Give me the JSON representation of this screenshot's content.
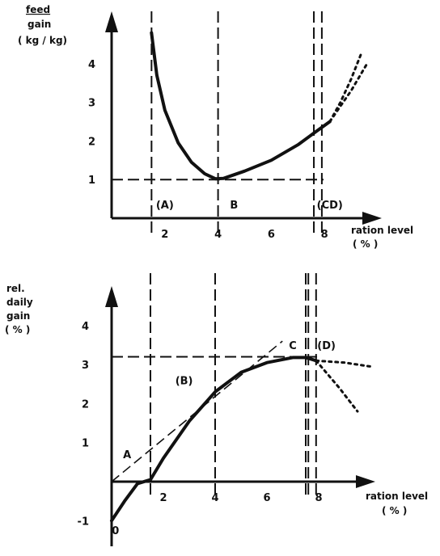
{
  "chart_data": [
    {
      "type": "line",
      "ylabel": [
        "feed",
        "gain",
        "( kg / kg)"
      ],
      "xlabel": [
        "ration level",
        "( % )"
      ],
      "x_ticks": [
        2,
        4,
        6,
        8
      ],
      "y_ticks": [
        1,
        2,
        3,
        4
      ],
      "xlim": [
        0,
        9.5
      ],
      "ylim": [
        0,
        5
      ],
      "series": [
        {
          "style": "solid",
          "x": [
            1.5,
            1.7,
            2.0,
            2.5,
            3.0,
            3.5,
            3.9,
            4.2,
            5.0,
            6.0,
            7.0,
            7.6,
            8.0,
            8.2
          ],
          "y": [
            4.8,
            3.7,
            2.8,
            1.95,
            1.45,
            1.15,
            1.02,
            1.03,
            1.22,
            1.5,
            1.9,
            2.2,
            2.4,
            2.5
          ]
        },
        {
          "style": "dotted",
          "x": [
            8.2,
            8.6,
            9.0,
            9.4
          ],
          "y": [
            2.5,
            3.0,
            3.6,
            4.3
          ]
        },
        {
          "style": "dotted",
          "x": [
            8.2,
            8.6,
            9.0,
            9.6
          ],
          "y": [
            2.5,
            2.9,
            3.3,
            4.0
          ]
        }
      ],
      "reference_lines": {
        "vertical": [
          1.5,
          4.0,
          7.6,
          7.9
        ],
        "horizontal": [
          1.0
        ]
      },
      "zones": [
        {
          "label": "(A)",
          "x": 2.0
        },
        {
          "label": "B",
          "x": 4.6
        },
        {
          "label": "(CD)",
          "x": 8.2
        }
      ]
    },
    {
      "type": "line",
      "ylabel": [
        "rel.",
        "daily",
        "gain",
        "( % )"
      ],
      "xlabel": [
        "ration level",
        "( % )"
      ],
      "x_ticks": [
        2,
        4,
        6,
        8
      ],
      "y_ticks": [
        -1,
        1,
        2,
        3,
        4
      ],
      "xlim": [
        -0.2,
        10
      ],
      "ylim": [
        -1.5,
        4.8
      ],
      "series": [
        {
          "style": "solid",
          "x": [
            0,
            0.5,
            1.0,
            1.5,
            2.0,
            3.0,
            4.0,
            5.0,
            6.0,
            7.0,
            7.5,
            7.9
          ],
          "y": [
            -1.0,
            -0.5,
            -0.05,
            0.05,
            0.6,
            1.55,
            2.3,
            2.8,
            3.05,
            3.18,
            3.18,
            3.1
          ]
        },
        {
          "style": "dotted",
          "x": [
            7.9,
            9.0,
            10.0
          ],
          "y": [
            3.1,
            3.05,
            2.95
          ]
        },
        {
          "style": "dotted",
          "x": [
            7.9,
            8.8,
            9.5
          ],
          "y": [
            3.1,
            2.4,
            1.8
          ]
        },
        {
          "style": "dashed",
          "x": [
            0,
            6.6
          ],
          "y": [
            0,
            3.6
          ]
        }
      ],
      "reference_lines": {
        "vertical": [
          1.5,
          4.0,
          7.5,
          7.6,
          7.9
        ],
        "horizontal": [
          3.2
        ]
      },
      "annotations": [
        {
          "label": "0",
          "x": 0.15,
          "y": -1.35
        },
        {
          "label": "A",
          "x": 0.6,
          "y": 0.6
        },
        {
          "label": "(B)",
          "x": 2.8,
          "y": 2.5
        },
        {
          "label": "C",
          "x": 7.0,
          "y": 3.4
        },
        {
          "label": "(D)",
          "x": 8.3,
          "y": 3.4
        }
      ]
    }
  ]
}
